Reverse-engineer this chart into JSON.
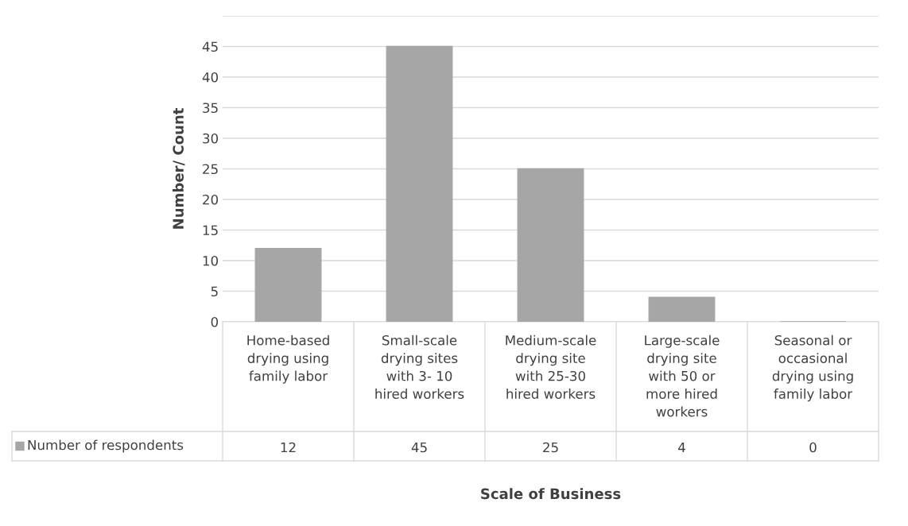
{
  "chart_data": {
    "type": "bar",
    "xlabel": "Scale of Business",
    "ylabel": "Number/ Count",
    "categories": [
      "Home-based drying using family labor",
      "Small-scale drying sites with 3- 10 hired workers",
      "Medium-scale drying site with 25-30 hired workers",
      "Large-scale drying site with 50 or more hired workers",
      "Seasonal or occasional drying using family labor"
    ],
    "series": [
      {
        "name": "Number of respondents",
        "color": "#a6a6a6",
        "values": [
          12,
          45,
          25,
          4,
          0
        ]
      }
    ],
    "ylim": [
      0,
      50
    ],
    "yticks": [
      0,
      5,
      10,
      15,
      20,
      25,
      30,
      35,
      40,
      45,
      {
        "value": 50,
        "label": null
      }
    ],
    "grid": "y",
    "data_labels": true,
    "legend": "bottom left"
  }
}
